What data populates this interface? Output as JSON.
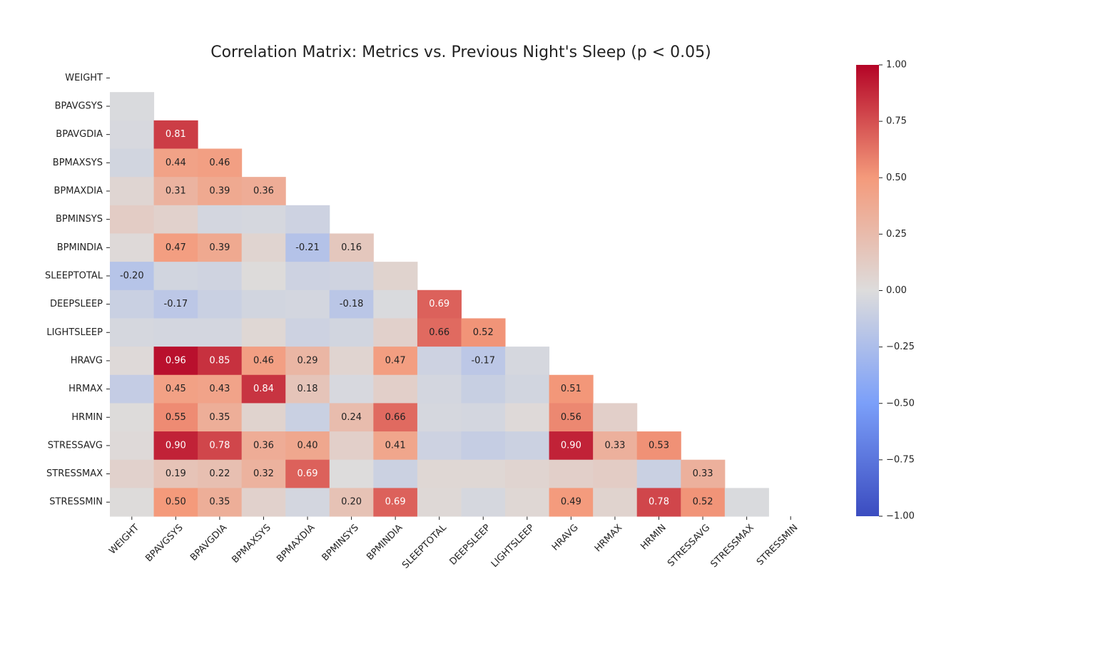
{
  "chart_data": {
    "type": "heatmap",
    "title": "Correlation Matrix: Metrics vs. Previous Night's Sleep (p < 0.05)",
    "rows": [
      "WEIGHT",
      "BPAVGSYS",
      "BPAVGDIA",
      "BPMAXSYS",
      "BPMAXDIA",
      "BPMINSYS",
      "BPMINDIA",
      "SLEEPTOTAL",
      "DEEPSLEEP",
      "LIGHTSLEEP",
      "HRAVG",
      "HRMAX",
      "HRMIN",
      "STRESSAVG",
      "STRESSMAX",
      "STRESSMIN"
    ],
    "columns": [
      "WEIGHT",
      "BPAVGSYS",
      "BPAVGDIA",
      "BPMAXSYS",
      "BPMAXDIA",
      "BPMINSYS",
      "BPMINDIA",
      "SLEEPTOTAL",
      "DEEPSLEEP",
      "LIGHTSLEEP",
      "HRAVG",
      "HRMAX",
      "HRMIN",
      "STRESSAVG",
      "STRESSMAX",
      "STRESSMIN"
    ],
    "values": [
      [
        null,
        null,
        null,
        null,
        null,
        null,
        null,
        null,
        null,
        null,
        null,
        null,
        null,
        null,
        null,
        null
      ],
      [
        -0.02,
        null,
        null,
        null,
        null,
        null,
        null,
        null,
        null,
        null,
        null,
        null,
        null,
        null,
        null,
        null
      ],
      [
        -0.03,
        0.81,
        null,
        null,
        null,
        null,
        null,
        null,
        null,
        null,
        null,
        null,
        null,
        null,
        null,
        null
      ],
      [
        -0.06,
        0.44,
        0.46,
        null,
        null,
        null,
        null,
        null,
        null,
        null,
        null,
        null,
        null,
        null,
        null,
        null
      ],
      [
        0.05,
        0.31,
        0.39,
        0.36,
        null,
        null,
        null,
        null,
        null,
        null,
        null,
        null,
        null,
        null,
        null,
        null
      ],
      [
        0.12,
        0.08,
        -0.05,
        -0.04,
        -0.08,
        null,
        null,
        null,
        null,
        null,
        null,
        null,
        null,
        null,
        null,
        null
      ],
      [
        0.02,
        0.47,
        0.39,
        0.06,
        -0.21,
        0.16,
        null,
        null,
        null,
        null,
        null,
        null,
        null,
        null,
        null,
        null
      ],
      [
        -0.2,
        -0.06,
        -0.07,
        0.01,
        -0.08,
        -0.07,
        0.07,
        null,
        null,
        null,
        null,
        null,
        null,
        null,
        null,
        null
      ],
      [
        -0.1,
        -0.17,
        -0.1,
        -0.06,
        -0.05,
        -0.18,
        -0.02,
        0.69,
        null,
        null,
        null,
        null,
        null,
        null,
        null,
        null
      ],
      [
        -0.04,
        -0.05,
        -0.05,
        0.04,
        -0.08,
        -0.06,
        0.09,
        0.66,
        0.52,
        null,
        null,
        null,
        null,
        null,
        null,
        null
      ],
      [
        0.02,
        0.96,
        0.85,
        0.46,
        0.29,
        0.06,
        0.47,
        -0.08,
        -0.17,
        -0.04,
        null,
        null,
        null,
        null,
        null,
        null
      ],
      [
        -0.13,
        0.45,
        0.43,
        0.84,
        0.18,
        -0.03,
        0.1,
        -0.05,
        -0.11,
        -0.06,
        0.51,
        null,
        null,
        null,
        null,
        null
      ],
      [
        0.01,
        0.55,
        0.35,
        0.07,
        -0.1,
        0.24,
        0.66,
        -0.04,
        -0.05,
        0.02,
        0.56,
        0.1,
        null,
        null,
        null,
        null
      ],
      [
        0.02,
        0.9,
        0.78,
        0.36,
        0.4,
        0.1,
        0.41,
        -0.08,
        -0.12,
        -0.09,
        0.9,
        0.33,
        0.53,
        null,
        null,
        null
      ],
      [
        0.08,
        0.19,
        0.22,
        0.32,
        0.69,
        0.0,
        -0.09,
        0.04,
        0.04,
        0.06,
        0.1,
        0.12,
        -0.1,
        0.33,
        null,
        null
      ],
      [
        0.01,
        0.5,
        0.35,
        0.08,
        -0.05,
        0.2,
        0.69,
        0.03,
        -0.04,
        0.04,
        0.49,
        0.07,
        0.78,
        0.52,
        -0.02,
        null
      ]
    ],
    "value_labels": [
      [
        null,
        null,
        null,
        null,
        null,
        null,
        null,
        null,
        null,
        null,
        null,
        null,
        null,
        null,
        null,
        null
      ],
      [
        null,
        null,
        null,
        null,
        null,
        null,
        null,
        null,
        null,
        null,
        null,
        null,
        null,
        null,
        null,
        null
      ],
      [
        null,
        "0.81",
        null,
        null,
        null,
        null,
        null,
        null,
        null,
        null,
        null,
        null,
        null,
        null,
        null,
        null
      ],
      [
        null,
        "0.44",
        "0.46",
        null,
        null,
        null,
        null,
        null,
        null,
        null,
        null,
        null,
        null,
        null,
        null,
        null
      ],
      [
        null,
        "0.31",
        "0.39",
        "0.36",
        null,
        null,
        null,
        null,
        null,
        null,
        null,
        null,
        null,
        null,
        null,
        null
      ],
      [
        null,
        null,
        null,
        null,
        null,
        null,
        null,
        null,
        null,
        null,
        null,
        null,
        null,
        null,
        null,
        null
      ],
      [
        null,
        "0.47",
        "0.39",
        null,
        "-0.21",
        "0.16",
        null,
        null,
        null,
        null,
        null,
        null,
        null,
        null,
        null,
        null
      ],
      [
        "-0.20",
        null,
        null,
        null,
        null,
        null,
        null,
        null,
        null,
        null,
        null,
        null,
        null,
        null,
        null,
        null
      ],
      [
        null,
        "-0.17",
        null,
        null,
        null,
        "-0.18",
        null,
        "0.69",
        null,
        null,
        null,
        null,
        null,
        null,
        null,
        null
      ],
      [
        null,
        null,
        null,
        null,
        null,
        null,
        null,
        "0.66",
        "0.52",
        null,
        null,
        null,
        null,
        null,
        null,
        null
      ],
      [
        null,
        "0.96",
        "0.85",
        "0.46",
        "0.29",
        null,
        "0.47",
        null,
        "-0.17",
        null,
        null,
        null,
        null,
        null,
        null,
        null
      ],
      [
        null,
        "0.45",
        "0.43",
        "0.84",
        "0.18",
        null,
        null,
        null,
        null,
        null,
        "0.51",
        null,
        null,
        null,
        null,
        null
      ],
      [
        null,
        "0.55",
        "0.35",
        null,
        null,
        "0.24",
        "0.66",
        null,
        null,
        null,
        "0.56",
        null,
        null,
        null,
        null,
        null
      ],
      [
        null,
        "0.90",
        "0.78",
        "0.36",
        "0.40",
        null,
        "0.41",
        null,
        null,
        null,
        "0.90",
        "0.33",
        "0.53",
        null,
        null,
        null
      ],
      [
        null,
        "0.19",
        "0.22",
        "0.32",
        "0.69",
        null,
        null,
        null,
        null,
        null,
        null,
        null,
        null,
        "0.33",
        null,
        null
      ],
      [
        null,
        "0.50",
        "0.35",
        null,
        null,
        "0.20",
        "0.69",
        null,
        null,
        null,
        "0.49",
        null,
        "0.78",
        "0.52",
        null,
        null
      ]
    ],
    "colormap": "coolwarm",
    "zlim": [
      -1,
      1
    ],
    "zticks": [
      {
        "value": 1,
        "label": "1.00"
      },
      {
        "value": 0.75,
        "label": "0.75"
      },
      {
        "value": 0.5,
        "label": "0.50"
      },
      {
        "value": 0.25,
        "label": "0.25"
      },
      {
        "value": 0,
        "label": "0.00"
      },
      {
        "value": -0.25,
        "label": "−0.25"
      },
      {
        "value": -0.5,
        "label": "−0.50"
      },
      {
        "value": -0.75,
        "label": "−0.75"
      },
      {
        "value": -1,
        "label": "−1.00"
      }
    ]
  }
}
